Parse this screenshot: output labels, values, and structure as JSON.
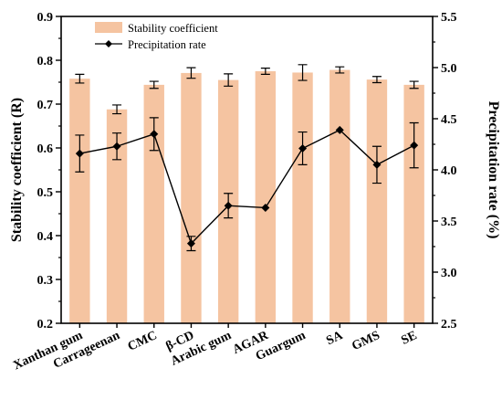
{
  "chart_data": {
    "type": "bar",
    "categories": [
      "Xanthan gum",
      "Carrageenan",
      "CMC",
      "β-CD",
      "Arabic gum",
      "AGAR",
      "Guargum",
      "SA",
      "GMS",
      "SE"
    ],
    "series": [
      {
        "name": "Stability coefficient",
        "kind": "bar",
        "axis": "left",
        "color": "#f5c4a1",
        "values": [
          0.758,
          0.688,
          0.744,
          0.771,
          0.755,
          0.775,
          0.772,
          0.778,
          0.756,
          0.744
        ],
        "errors": [
          0.01,
          0.01,
          0.008,
          0.012,
          0.014,
          0.007,
          0.018,
          0.007,
          0.007,
          0.008
        ]
      },
      {
        "name": "Precipitation rate",
        "kind": "line",
        "axis": "right",
        "color": "#000000",
        "marker": "diamond",
        "values": [
          4.16,
          4.23,
          4.35,
          3.28,
          3.65,
          3.63,
          4.21,
          4.39,
          4.05,
          4.24
        ],
        "errors": [
          0.18,
          0.13,
          0.16,
          0.07,
          0.12,
          0.0,
          0.16,
          0.0,
          0.18,
          0.22
        ]
      }
    ],
    "ylabel_left": "Stability coefficient (R)",
    "ylabel_right": "Precipitation rate (%)",
    "ylim_left": [
      0.2,
      0.9
    ],
    "ylim_right": [
      2.5,
      5.5
    ],
    "yticks_left": [
      "0.2",
      "0.3",
      "0.4",
      "0.5",
      "0.6",
      "0.7",
      "0.8",
      "0.9"
    ],
    "yticks_right": [
      "2.5",
      "3.0",
      "3.5",
      "4.0",
      "4.5",
      "5.0",
      "5.5"
    ],
    "grid": false,
    "legend_position": "top-left"
  }
}
